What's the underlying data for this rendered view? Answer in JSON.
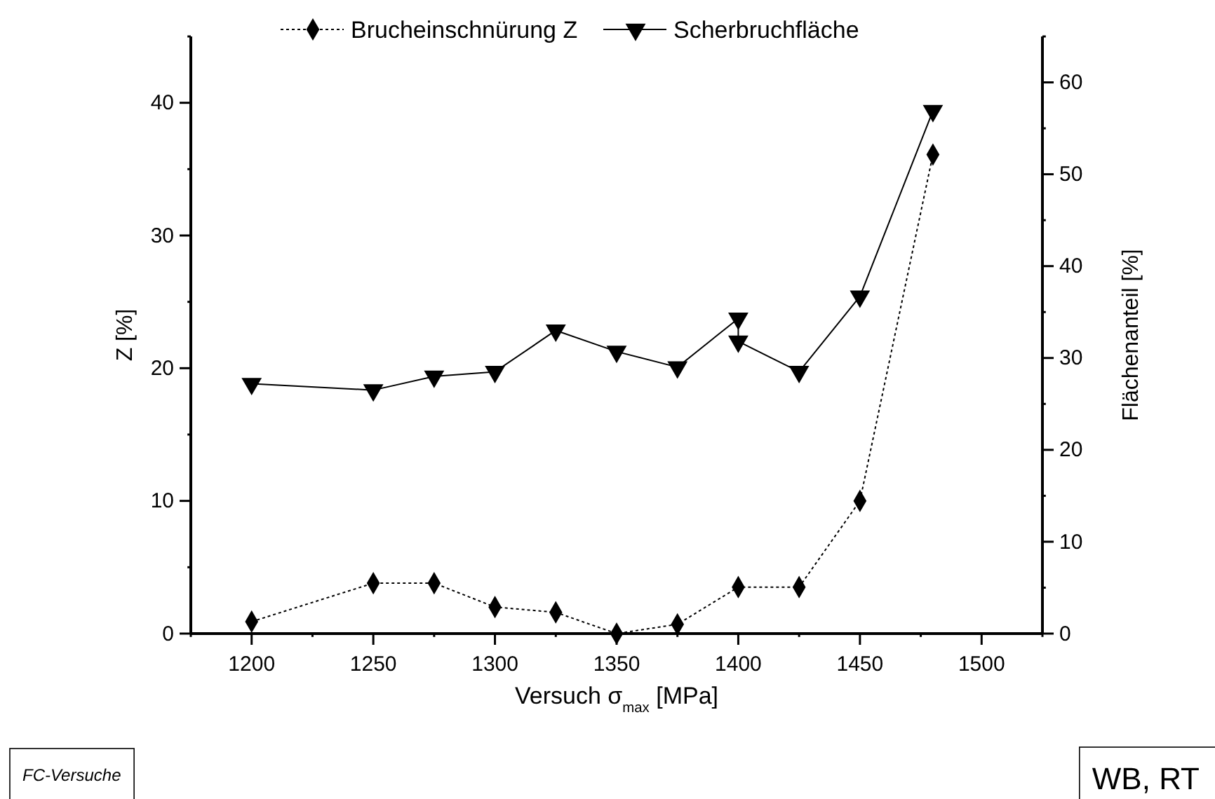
{
  "chart_data": {
    "type": "line",
    "xlabel": "Versuch σ$_{max}$ [MPa]",
    "ylabel": "Z [%]",
    "y2label": "Flächenanteil [%]",
    "xlim": [
      1175,
      1525
    ],
    "xticks": [
      {
        "value": 1175,
        "label": null
      },
      1200,
      {
        "value": 1225,
        "label": null
      },
      1250,
      {
        "value": 1275,
        "label": null
      },
      1300,
      {
        "value": 1325,
        "label": null
      },
      1350,
      {
        "value": 1375,
        "label": null
      },
      1400,
      {
        "value": 1425,
        "label": null
      },
      1450,
      {
        "value": 1475,
        "label": null
      },
      1500,
      {
        "value": 1525,
        "label": null
      }
    ],
    "ylim": [
      0,
      45
    ],
    "yticks": [
      0,
      {
        "value": 5,
        "label": null
      },
      10,
      {
        "value": 15,
        "label": null
      },
      20,
      {
        "value": 25,
        "label": null
      },
      30,
      {
        "value": 35,
        "label": null
      },
      40,
      {
        "value": 45,
        "label": null
      }
    ],
    "y2lim": [
      0,
      65
    ],
    "y2ticks": [
      0,
      {
        "value": 5,
        "label": null
      },
      10,
      {
        "value": 15,
        "label": null
      },
      20,
      {
        "value": 25,
        "label": null
      },
      30,
      {
        "value": 35,
        "label": null
      },
      40,
      {
        "value": 45,
        "label": null
      },
      50,
      {
        "value": 55,
        "label": null
      },
      60,
      {
        "value": 65,
        "label": null
      }
    ],
    "legend": "top",
    "series": [
      {
        "name": "Brucheinschnürung Z",
        "color": "#000000",
        "marker": "diamond",
        "line_style": "dotted",
        "x": [
          1200,
          1250,
          1275,
          1300,
          1325,
          1350,
          1375,
          1400,
          1425,
          1450,
          1480
        ],
        "values": [
          0.9,
          3.8,
          3.8,
          2.0,
          1.6,
          0,
          0.7,
          3.5,
          3.5,
          10.0,
          36.1
        ]
      },
      {
        "name": "Scherbruchfläche",
        "color": "#000000",
        "marker": "triangle",
        "line_style": "solid",
        "axis": "y2",
        "x": [
          1200,
          1250,
          1275,
          1300,
          1325,
          1350,
          1375,
          1400,
          1400,
          1425,
          1450,
          1480
        ],
        "values": [
          27.2,
          26.5,
          28.0,
          28.5,
          33.0,
          30.7,
          29.0,
          34.3,
          31.8,
          28.5,
          36.7,
          56.9
        ]
      }
    ],
    "annotations": [
      "FC-Versuche",
      "WB, RT"
    ]
  }
}
